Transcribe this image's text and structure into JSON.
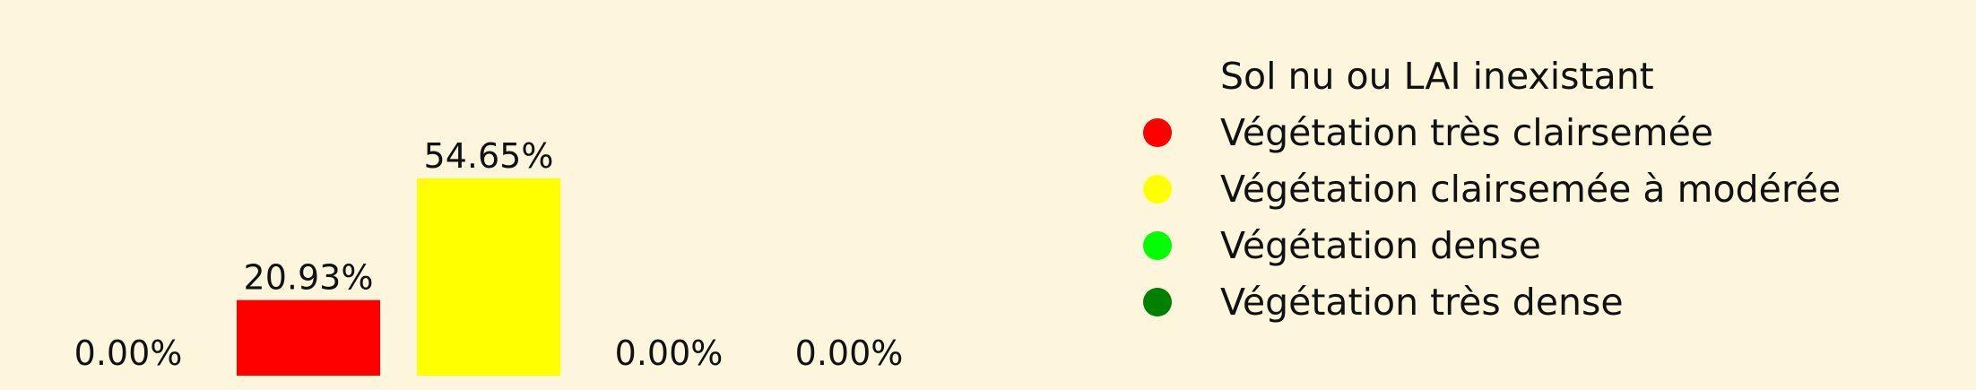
{
  "chart_data": {
    "type": "bar",
    "categories": [
      "Sol nu ou LAI inexistant",
      "Végétation très clairsemée",
      "Végétation clairsemée à modérée",
      "Végétation dense",
      "Végétation très dense"
    ],
    "values": [
      0.0,
      20.93,
      54.65,
      0.0,
      0.0
    ],
    "value_labels": [
      "0.00%",
      "20.93%",
      "54.65%",
      "0.00%",
      "0.00%"
    ],
    "colors": [
      "#fdf6dc",
      "#ff0000",
      "#ffff00",
      "#00ff00",
      "#008000"
    ],
    "legend": {
      "placement": "right",
      "entries": [
        {
          "label": "Sol nu ou LAI inexistant",
          "color": "#fdf6dc"
        },
        {
          "label": "Végétation très clairsemée",
          "color": "#ff0000"
        },
        {
          "label": "Végétation clairsemée à modérée",
          "color": "#ffff00"
        },
        {
          "label": "Végétation dense",
          "color": "#00ff00"
        },
        {
          "label": "Végétation très dense",
          "color": "#008000"
        }
      ]
    },
    "ylim": [
      0,
      100
    ],
    "axes_visible": false,
    "grid": false
  }
}
